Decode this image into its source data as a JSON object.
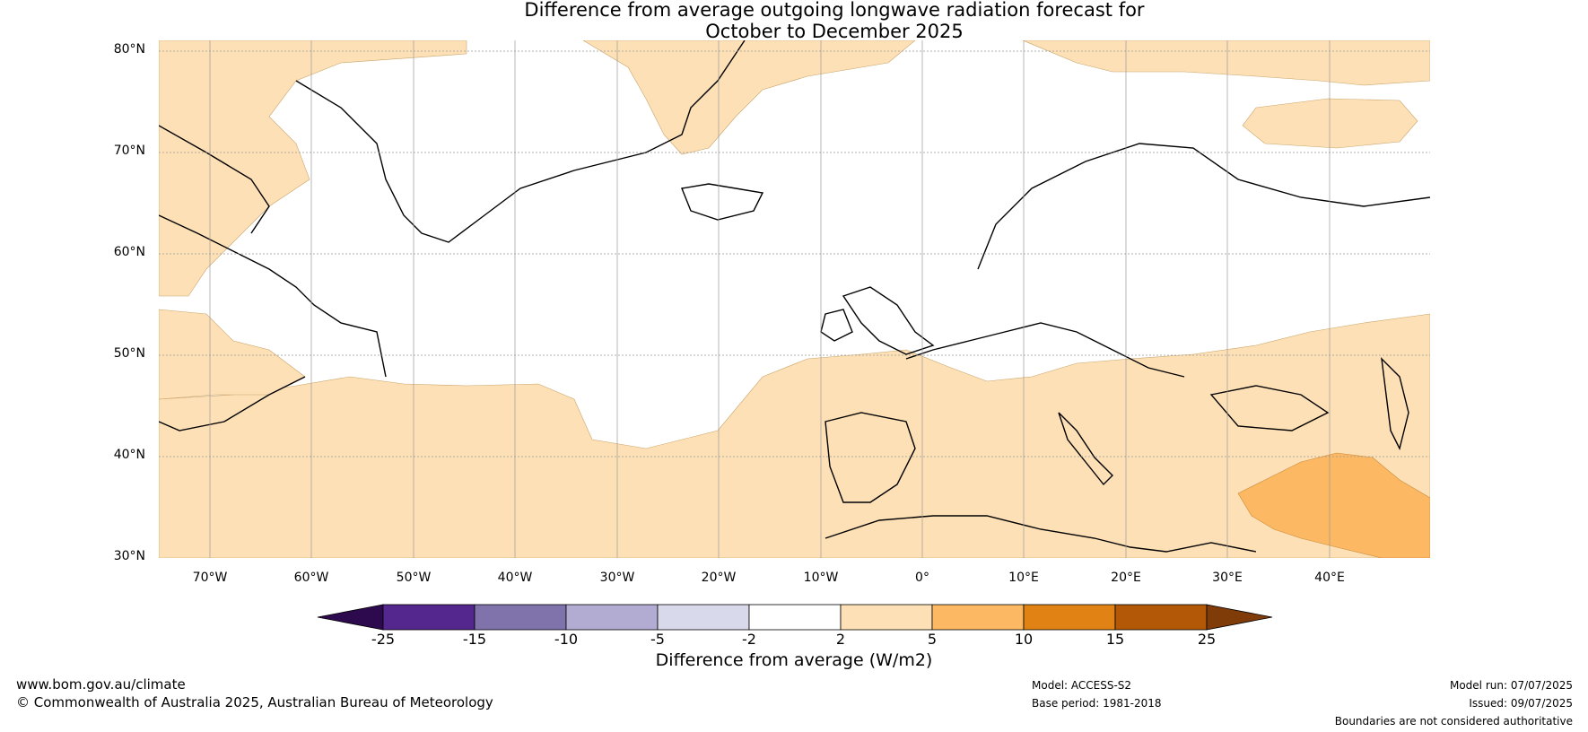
{
  "title": {
    "line1": "Difference from average outgoing longwave radiation forecast for",
    "line2": "October to December 2025"
  },
  "map": {
    "lat_labels": [
      "80°N",
      "70°N",
      "60°N",
      "50°N",
      "40°N",
      "30°N"
    ],
    "lon_labels": [
      "70°W",
      "60°W",
      "50°W",
      "40°W",
      "30°W",
      "20°W",
      "10°W",
      "0°",
      "10°E",
      "20°E",
      "30°E",
      "40°E"
    ]
  },
  "colorbar": {
    "title": "Difference from average (W/m2)",
    "tick_labels": [
      "-25",
      "-15",
      "-10",
      "-5",
      "-2",
      "2",
      "5",
      "10",
      "15",
      "25"
    ],
    "colors": [
      "#2d0a4e",
      "#54278f",
      "#8073ac",
      "#b2abd2",
      "#d8daeb",
      "#ffffff",
      "#fde0b6",
      "#fdb863",
      "#e08214",
      "#b35806",
      "#7f3b08"
    ]
  },
  "footer": {
    "url": "www.bom.gov.au/climate",
    "copyright": "© Commonwealth of Australia 2025, Australian Bureau of Meteorology",
    "model": "Model: ACCESS-S2",
    "base_period": "Base period: 1981-2018",
    "model_run": "Model run: 07/07/2025",
    "issued": "Issued: 09/07/2025",
    "disclaimer": "Boundaries are not considered authoritative"
  }
}
